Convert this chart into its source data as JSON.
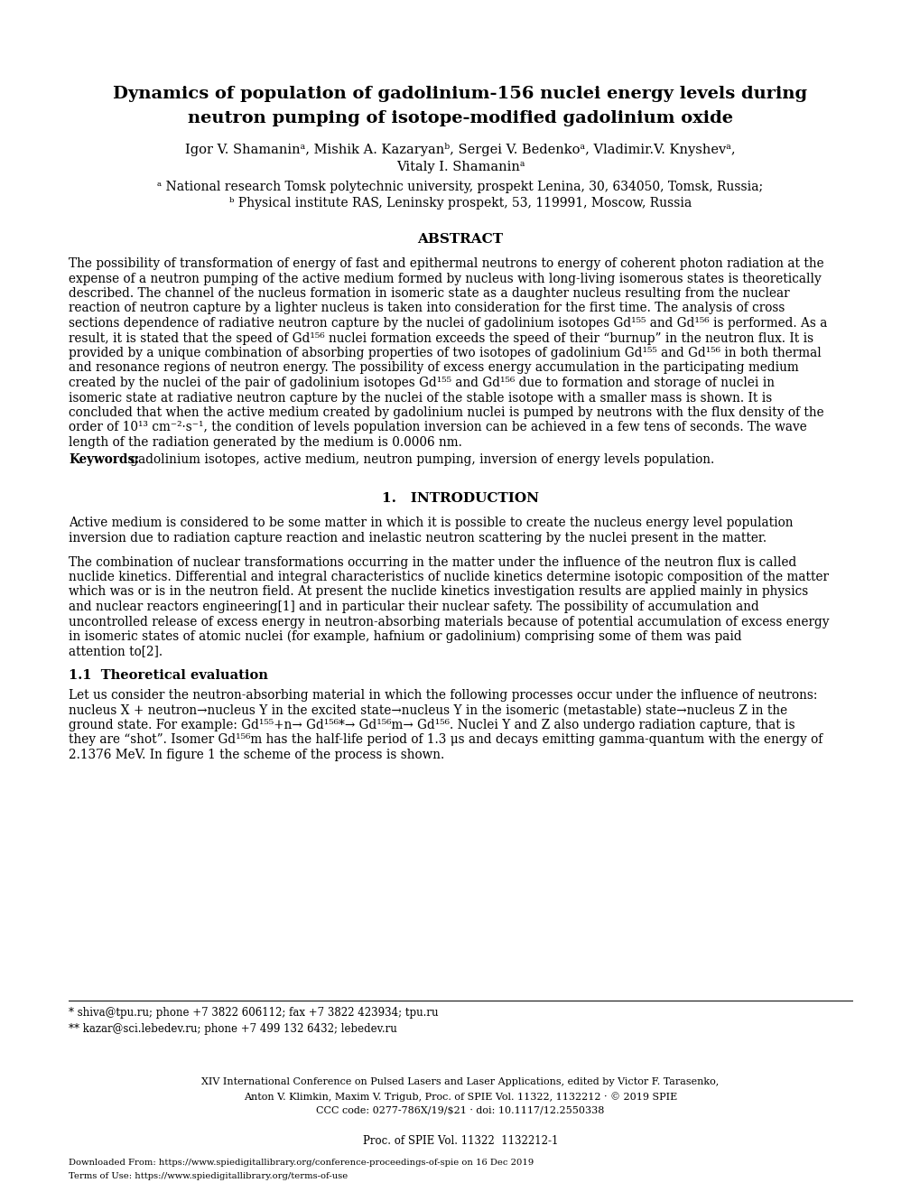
{
  "bg_color": "#ffffff",
  "title_line1": "Dynamics of population of gadolinium-156 nuclei energy levels during",
  "title_line2": "neutron pumping of isotope-modified gadolinium oxide",
  "authors_line1": "Igor V. Shamaninᵃ, Mishik A. Kazaryanᵇ, Sergei V. Bedenkoᵃ, Vladimir.V. Knyshevᵃ,",
  "authors_line2": "Vitaly I. Shamaninᵃ",
  "affil_a": "ᵃ National research Tomsk polytechnic university, prospekt Lenina, 30, 634050, Tomsk, Russia;",
  "affil_b": "ᵇ Physical institute RAS, Leninsky prospekt, 53, 119991, Moscow, Russia",
  "abstract_heading": "ABSTRACT",
  "keywords_label": "Keywords:",
  "keywords_text": " gadolinium isotopes, active medium, neutron pumping, inversion of energy levels population.",
  "intro_heading": "1.   INTRODUCTION",
  "section11_heading": "1.1  Theoretical evaluation",
  "footnote1": "* shiva@tpu.ru; phone +7 3822 606112; fax +7 3822 423934; tpu.ru",
  "footnote2": "** kazar@sci.lebedev.ru; phone +7 499 132 6432; lebedev.ru",
  "conference_line1": "XIV International Conference on Pulsed Lasers and Laser Applications, edited by Victor F. Tarasenko,",
  "conference_line2": "Anton V. Klimkin, Maxim V. Trigub, Proc. of SPIE Vol. 11322, 1132212 · © 2019 SPIE",
  "conference_line3": "CCC code: 0277-786X/19/$21 · doi: 10.1117/12.2550338",
  "proc_line": "Proc. of SPIE Vol. 11322  1132212-1",
  "download_line": "Downloaded From: https://www.spiedigitallibrary.org/conference-proceedings-of-spie on 16 Dec 2019",
  "terms_line": "Terms of Use: https://www.spiedigitallibrary.org/terms-of-use",
  "abstract_lines": [
    "The possibility of transformation of energy of fast and epithermal neutrons to energy of coherent photon radiation at the",
    "expense of a neutron pumping of the active medium formed by nucleus with long-living isomerous states is theoretically",
    "described. The channel of the nucleus formation in isomeric state as a daughter nucleus resulting from the nuclear",
    "reaction of neutron capture by a lighter nucleus is taken into consideration for the first time. The analysis of cross",
    "sections dependence of radiative neutron capture by the nuclei of gadolinium isotopes Gd¹⁵⁵ and Gd¹⁵⁶ is performed. As a",
    "result, it is stated that the speed of Gd¹⁵⁶ nuclei formation exceeds the speed of their “burnup” in the neutron flux. It is",
    "provided by a unique combination of absorbing properties of two isotopes of gadolinium Gd¹⁵⁵ and Gd¹⁵⁶ in both thermal",
    "and resonance regions of neutron energy. The possibility of excess energy accumulation in the participating medium",
    "created by the nuclei of the pair of gadolinium isotopes Gd¹⁵⁵ and Gd¹⁵⁶ due to formation and storage of nuclei in",
    "isomeric state at radiative neutron capture by the nuclei of the stable isotope with a smaller mass is shown. It is",
    "concluded that when the active medium created by gadolinium nuclei is pumped by neutrons with the flux density of the",
    "order of 10¹³ cm⁻²·s⁻¹, the condition of levels population inversion can be achieved in a few tens of seconds. The wave",
    "length of the radiation generated by the medium is 0.0006 nm."
  ],
  "intro1_lines": [
    "Active medium is considered to be some matter in which it is possible to create the nucleus energy level population",
    "inversion due to radiation capture reaction and inelastic neutron scattering by the nuclei present in the matter."
  ],
  "intro2_lines": [
    "The combination of nuclear transformations occurring in the matter under the influence of the neutron flux is called",
    "nuclide kinetics. Differential and integral characteristics of nuclide kinetics determine isotopic composition of the matter",
    "which was or is in the neutron field. At present the nuclide kinetics investigation results are applied mainly in physics",
    "and nuclear reactors engineering[1] and in particular their nuclear safety. The possibility of accumulation and",
    "uncontrolled release of excess energy in neutron-absorbing materials because of potential accumulation of excess energy",
    "in isomeric states of atomic nuclei (for example, hafnium or gadolinium) comprising some of them was paid",
    "attention to[2]."
  ],
  "sec11_lines": [
    "Let us consider the neutron-absorbing material in which the following processes occur under the influence of neutrons:",
    "nucleus X + neutron→nucleus Y in the excited state→nucleus Y in the isomeric (metastable) state→nucleus Z in the",
    "ground state. For example: Gd¹⁵⁵+n→ Gd¹⁵⁶*→ Gd¹⁵⁶m→ Gd¹⁵⁶. Nuclei Y and Z also undergo radiation capture, that is",
    "they are “shot”. Isomer Gd¹⁵⁶m has the half-life period of 1.3 μs and decays emitting gamma-quantum with the energy of",
    "2.1376 MeV. In figure 1 the scheme of the process is shown."
  ]
}
